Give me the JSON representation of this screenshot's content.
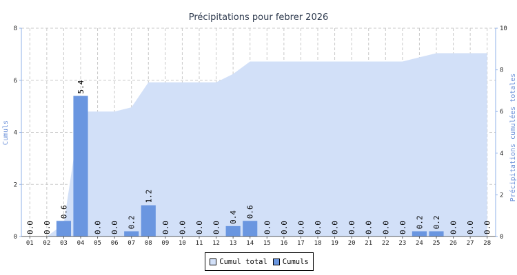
{
  "chart_data": {
    "type": "bar",
    "title": "Précipitations pour febrer 2026",
    "ylabel_left": "Cumuls",
    "ylabel_right": "Précipitations cumulées totales",
    "ylim_left": [
      0,
      8
    ],
    "ylim_right": [
      0,
      10
    ],
    "yticks_left": [
      0,
      2,
      4,
      6,
      8
    ],
    "yticks_right": [
      0,
      2,
      4,
      6,
      8,
      10
    ],
    "grid": true,
    "legend_position": "bottom",
    "categories": [
      "01",
      "02",
      "03",
      "04",
      "05",
      "06",
      "07",
      "08",
      "09",
      "10",
      "11",
      "12",
      "13",
      "14",
      "15",
      "16",
      "17",
      "18",
      "19",
      "20",
      "21",
      "22",
      "23",
      "24",
      "25",
      "26",
      "27",
      "28"
    ],
    "series": [
      {
        "name": "Cumuls",
        "type": "bar",
        "axis": "left",
        "color": "#6a96e0",
        "values": [
          0.0,
          0.0,
          0.6,
          5.4,
          0.0,
          0.0,
          0.2,
          1.2,
          0.0,
          0.0,
          0.0,
          0.0,
          0.4,
          0.6,
          0.0,
          0.0,
          0.0,
          0.0,
          0.0,
          0.0,
          0.0,
          0.0,
          0.0,
          0.2,
          0.2,
          0.0,
          0.0,
          0.0
        ],
        "data_labels": [
          "0.0",
          "0.0",
          "0.6",
          "5.4",
          "0.0",
          "0.0",
          "0.2",
          "1.2",
          "0.0",
          "0.0",
          "0.0",
          "0.0",
          "0.4",
          "0.6",
          "0.0",
          "0.0",
          "0.0",
          "0.0",
          "0.0",
          "0.0",
          "0.0",
          "0.0",
          "0.0",
          "0.2",
          "0.2",
          "0.0",
          "0.0",
          "0.0"
        ]
      },
      {
        "name": "Cumul total",
        "type": "area",
        "axis": "right",
        "color": "#d2e0f8",
        "values": [
          0.0,
          0.0,
          0.6,
          6.0,
          6.0,
          6.0,
          6.2,
          7.4,
          7.4,
          7.4,
          7.4,
          7.4,
          7.8,
          8.4,
          8.4,
          8.4,
          8.4,
          8.4,
          8.4,
          8.4,
          8.4,
          8.4,
          8.4,
          8.6,
          8.8,
          8.8,
          8.8,
          8.8
        ]
      }
    ]
  },
  "legend": {
    "items": [
      {
        "label": "Cumul total",
        "color": "#d2e0f8"
      },
      {
        "label": "Cumuls",
        "color": "#6a96e0"
      }
    ]
  }
}
